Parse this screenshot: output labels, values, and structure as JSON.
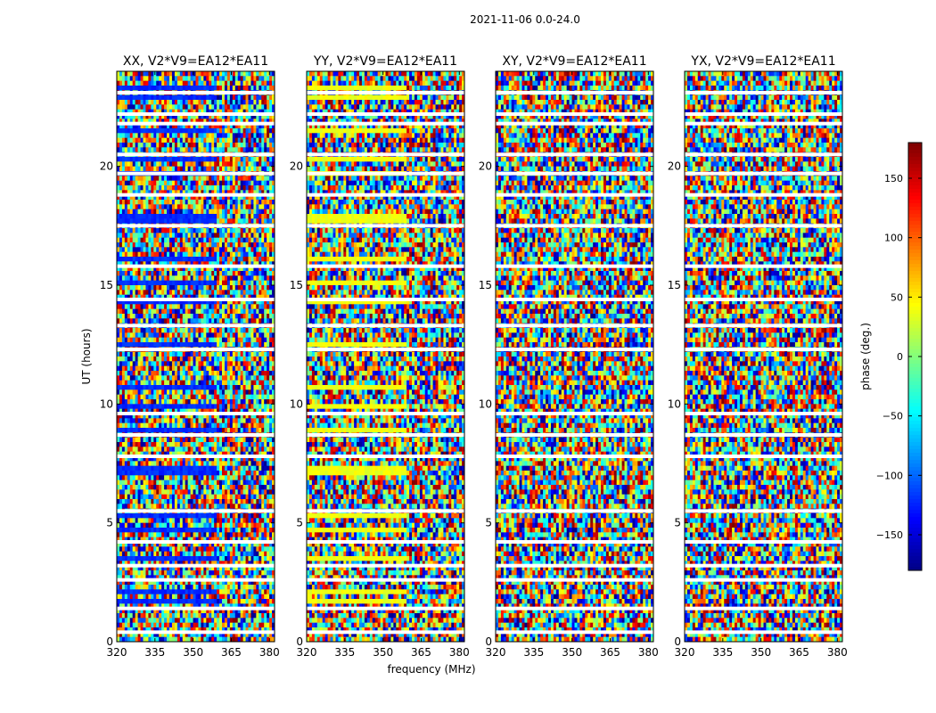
{
  "chart_data": {
    "type": "heatmap",
    "suptitle": "2021-11-06 0.0-24.0",
    "xlabel": "frequency (MHz)",
    "ylabel": "UT (hours)",
    "xlim": [
      320,
      382
    ],
    "ylim": [
      0,
      24
    ],
    "xticks": [
      "320",
      "335",
      "350",
      "365",
      "380"
    ],
    "yticks": [
      "0",
      "5",
      "10",
      "15",
      "20"
    ],
    "colorbar": {
      "label": "phase (deg.)",
      "range": [
        -180,
        180
      ],
      "ticks": [
        "−150",
        "−100",
        "−50",
        "0",
        "50",
        "100",
        "150"
      ],
      "colormap": "jet"
    },
    "panels": [
      {
        "title": "XX, V2*V9=EA12*EA11",
        "smooth_phase_deg": -120
      },
      {
        "title": "YY, V2*V9=EA12*EA11",
        "smooth_phase_deg": 40
      },
      {
        "title": "XY, V2*V9=EA12*EA11",
        "smooth_phase_deg": null
      },
      {
        "title": "YX, V2*V9=EA12*EA11",
        "smooth_phase_deg": null
      }
    ],
    "gaps_ut_hours": [
      0.4,
      1.4,
      2.6,
      3.2,
      4.2,
      5.5,
      7.8,
      8.7,
      9.6,
      12.3,
      13.3,
      14.4,
      15.8,
      17.5,
      18.8,
      19.7,
      20.5,
      21.8,
      22.2,
      23.1
    ]
  }
}
